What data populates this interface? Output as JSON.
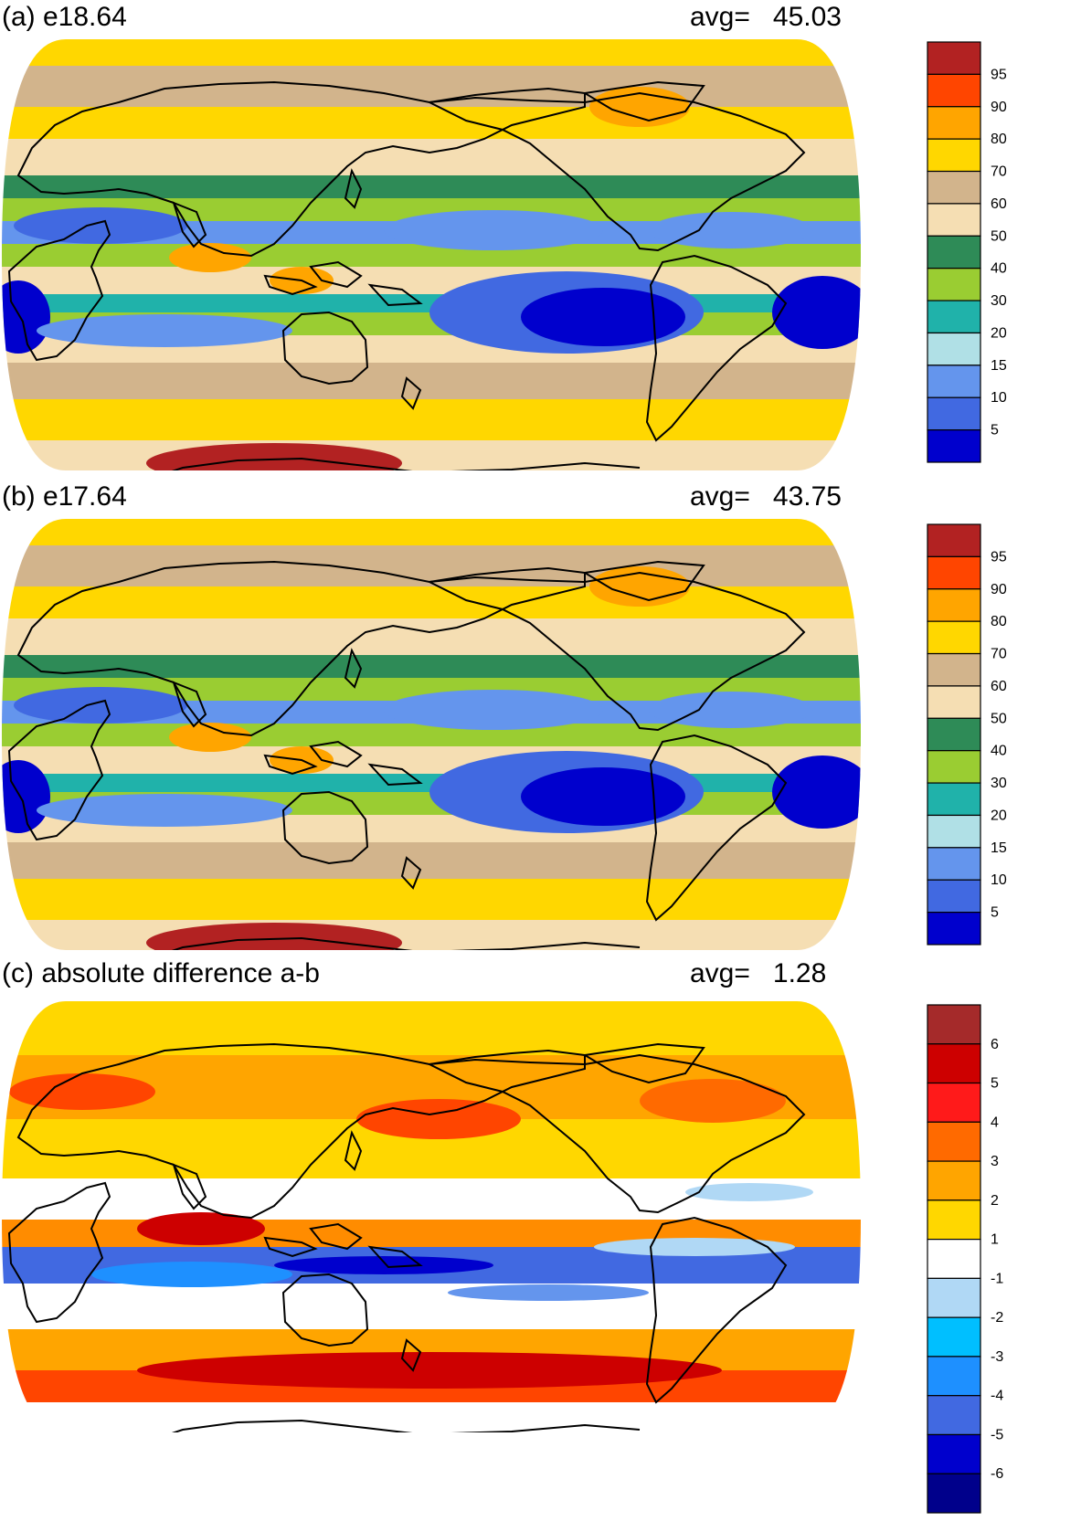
{
  "panels": [
    {
      "title": "(a) e18.64",
      "avg_label": "avg=",
      "avg_value": "45.03",
      "colorbar": {
        "labels": [
          "95",
          "90",
          "80",
          "70",
          "60",
          "50",
          "40",
          "30",
          "20",
          "15",
          "10",
          "5"
        ],
        "colors": [
          "#b22222",
          "#ff4500",
          "#ffa500",
          "#ffd700",
          "#d2b48c",
          "#f5deb3",
          "#2e8b57",
          "#9acd32",
          "#20b2aa",
          "#b0e0e6",
          "#6495ed",
          "#4169e1",
          "#0000cd"
        ]
      }
    },
    {
      "title": "(b) e17.64",
      "avg_label": "avg=",
      "avg_value": "43.75",
      "colorbar": {
        "labels": [
          "95",
          "90",
          "80",
          "70",
          "60",
          "50",
          "40",
          "30",
          "20",
          "15",
          "10",
          "5"
        ],
        "colors": [
          "#b22222",
          "#ff4500",
          "#ffa500",
          "#ffd700",
          "#d2b48c",
          "#f5deb3",
          "#2e8b57",
          "#9acd32",
          "#20b2aa",
          "#b0e0e6",
          "#6495ed",
          "#4169e1",
          "#0000cd"
        ]
      }
    },
    {
      "title": "(c) absolute difference a-b",
      "avg_label": "avg=",
      "avg_value": "1.28",
      "colorbar": {
        "labels": [
          "6",
          "5",
          "4",
          "3",
          "2",
          "1",
          "-1",
          "-2",
          "-3",
          "-4",
          "-5",
          "-6"
        ],
        "colors": [
          "#a52a2a",
          "#cd0000",
          "#ff1a1a",
          "#ff6a00",
          "#ffa500",
          "#ffd700",
          "#ffffff",
          "#b0d8f5",
          "#00bfff",
          "#1e90ff",
          "#4169e1",
          "#0000cd",
          "#00008b"
        ]
      }
    }
  ]
}
